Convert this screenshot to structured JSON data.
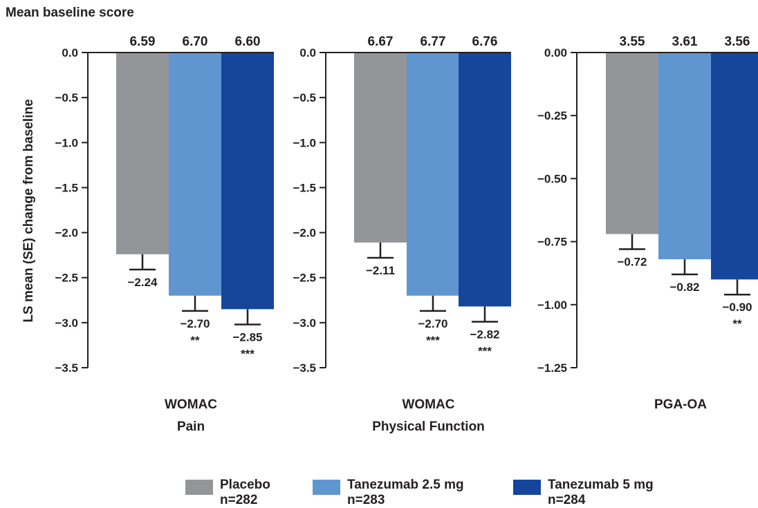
{
  "header": {
    "baseline_label": "Mean baseline score"
  },
  "colors": {
    "placebo": "#939598",
    "tan25": "#6096d0",
    "tan5": "#15469c",
    "axis": "#231f20"
  },
  "chart_data": [
    {
      "type": "bar",
      "xlabel": [
        "WOMAC",
        "Pain"
      ],
      "ylabel": "LS mean (SE) change from baseline",
      "ylim": [
        -3.5,
        0
      ],
      "yticks": [
        0,
        -0.5,
        -1,
        -1.5,
        -2,
        -2.5,
        -3,
        -3.5
      ],
      "ytick_labels": [
        "0.0",
        "−0.5",
        "−1.0",
        "−1.5",
        "−2.0",
        "−2.5",
        "−3.0",
        "−3.5"
      ],
      "series": [
        {
          "name": "Placebo",
          "value": -2.24,
          "label": "−2.24",
          "baseline": "6.59",
          "se": 0.17,
          "sig": ""
        },
        {
          "name": "Tanezumab 2.5 mg",
          "value": -2.7,
          "label": "−2.70",
          "baseline": "6.70",
          "se": 0.17,
          "sig": "**"
        },
        {
          "name": "Tanezumab 5 mg",
          "value": -2.85,
          "label": "−2.85",
          "baseline": "6.60",
          "se": 0.17,
          "sig": "***"
        }
      ]
    },
    {
      "type": "bar",
      "xlabel": [
        "WOMAC",
        "Physical Function"
      ],
      "ylabel": "",
      "ylim": [
        -3.5,
        0
      ],
      "yticks": [
        0,
        -0.5,
        -1,
        -1.5,
        -2,
        -2.5,
        -3,
        -3.5
      ],
      "ytick_labels": [
        "0.0",
        "−0.5",
        "−1.0",
        "−1.5",
        "−2.0",
        "−2.5",
        "−3.0",
        "−3.5"
      ],
      "series": [
        {
          "name": "Placebo",
          "value": -2.11,
          "label": "−2.11",
          "baseline": "6.67",
          "se": 0.17,
          "sig": ""
        },
        {
          "name": "Tanezumab 2.5 mg",
          "value": -2.7,
          "label": "−2.70",
          "baseline": "6.77",
          "se": 0.17,
          "sig": "***"
        },
        {
          "name": "Tanezumab 5 mg",
          "value": -2.82,
          "label": "−2.82",
          "baseline": "6.76",
          "se": 0.17,
          "sig": "***"
        }
      ]
    },
    {
      "type": "bar",
      "xlabel": [
        "PGA-OA"
      ],
      "ylabel": "",
      "ylim": [
        -1.25,
        0
      ],
      "yticks": [
        0,
        -0.25,
        -0.5,
        -0.75,
        -1,
        -1.25
      ],
      "ytick_labels": [
        "0.00",
        "−0.25",
        "−0.50",
        "−0.75",
        "−1.00",
        "−1.25"
      ],
      "series": [
        {
          "name": "Placebo",
          "value": -0.72,
          "label": "−0.72",
          "baseline": "3.55",
          "se": 0.06,
          "sig": ""
        },
        {
          "name": "Tanezumab 2.5 mg",
          "value": -0.82,
          "label": "−0.82",
          "baseline": "3.61",
          "se": 0.06,
          "sig": ""
        },
        {
          "name": "Tanezumab 5 mg",
          "value": -0.9,
          "label": "−0.90",
          "baseline": "3.56",
          "se": 0.06,
          "sig": "**"
        }
      ]
    }
  ],
  "legend": {
    "placement": "bottom",
    "items": [
      {
        "label": "Placebo",
        "n": "n=282",
        "color": "#939598"
      },
      {
        "label": "Tanezumab 2.5 mg",
        "n": "n=283",
        "color": "#6096d0"
      },
      {
        "label": "Tanezumab 5 mg",
        "n": "n=284",
        "color": "#15469c"
      }
    ]
  }
}
